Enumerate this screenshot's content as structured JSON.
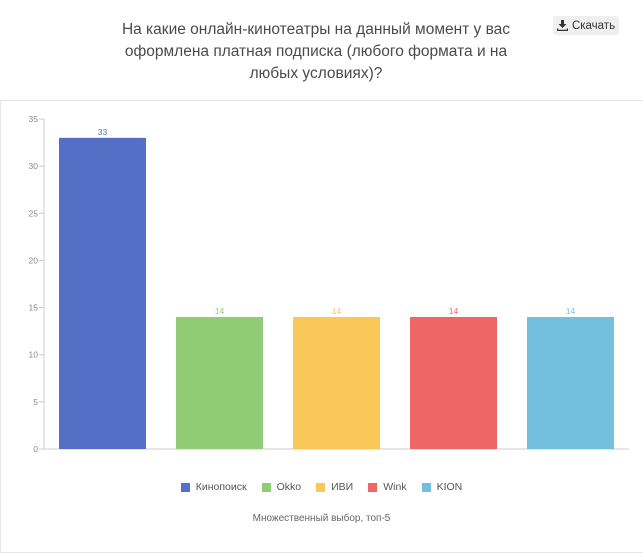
{
  "title": "На какие онлайн-кинотеатры на данный момент у вас оформлена платная подписка (любого формата и на любых условиях)?",
  "download_label": "Скачать",
  "footnote": "Множественный выбор, топ-5",
  "chart_data": {
    "type": "bar",
    "categories": [
      "Кинопоиск",
      "Okko",
      "ИВИ",
      "Wink",
      "KION"
    ],
    "values": [
      33,
      14,
      14,
      14,
      14
    ],
    "colors": [
      "#5470c6",
      "#91cc75",
      "#fac858",
      "#ee6666",
      "#73c0de"
    ],
    "ylim": [
      0,
      35
    ],
    "yticks": [
      0,
      5,
      10,
      15,
      20,
      25,
      30,
      35
    ],
    "grid": false,
    "legend_position": "bottom",
    "data_labels": true
  }
}
